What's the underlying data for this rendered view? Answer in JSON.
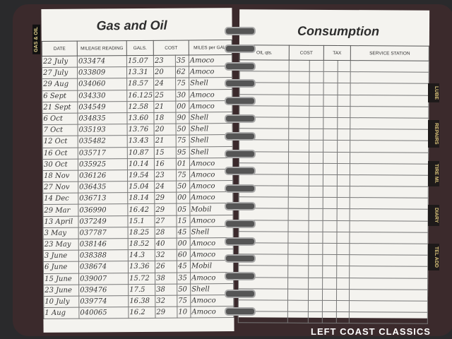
{
  "left_page": {
    "title": "Gas and Oil",
    "tab": "GAS & OIL",
    "headers": [
      "DATE",
      "MILEAGE READING",
      "GALS.",
      "COST",
      "MILES per GAL."
    ],
    "rows": [
      [
        "22 July",
        "033474",
        "15.07",
        "23",
        "35",
        "Amoco"
      ],
      [
        "27 July",
        "033809",
        "13.31",
        "20",
        "62",
        "Amoco"
      ],
      [
        "29 Aug",
        "034060",
        "18.57",
        "24",
        "75",
        "Shell"
      ],
      [
        "6 Sept",
        "034330",
        "16.125",
        "25",
        "30",
        "Amoco"
      ],
      [
        "21 Sept",
        "034549",
        "12.58",
        "21",
        "00",
        "Amoco"
      ],
      [
        "6 Oct",
        "034835",
        "13.60",
        "18",
        "90",
        "Shell"
      ],
      [
        "7 Oct",
        "035193",
        "13.76",
        "20",
        "50",
        "Shell"
      ],
      [
        "12 Oct",
        "035482",
        "13.43",
        "21",
        "75",
        "Shell"
      ],
      [
        "16 Oct",
        "035717",
        "10.87",
        "15",
        "95",
        "Shell"
      ],
      [
        "30 Oct",
        "035925",
        "10.14",
        "16",
        "01",
        "Amoco"
      ],
      [
        "18 Nov",
        "036126",
        "19.54",
        "23",
        "75",
        "Amoco"
      ],
      [
        "27 Nov",
        "036435",
        "15.04",
        "24",
        "50",
        "Amoco"
      ],
      [
        "14 Dec",
        "036713",
        "18.14",
        "29",
        "00",
        "Amoco"
      ],
      [
        "29 Mar",
        "036990",
        "16.42",
        "29",
        "05",
        "Mobil"
      ],
      [
        "13 April",
        "037249",
        "15.1",
        "27",
        "15",
        "Amoco"
      ],
      [
        "3 May",
        "037787",
        "18.25",
        "28",
        "45",
        "Shell"
      ],
      [
        "23 May",
        "038146",
        "18.52",
        "40",
        "00",
        "Amoco"
      ],
      [
        "3 June",
        "038388",
        "14.3",
        "32",
        "60",
        "Amoco"
      ],
      [
        "6 June",
        "038674",
        "13.36",
        "26",
        "45",
        "Mobil"
      ],
      [
        "15 June",
        "039007",
        "15.72",
        "38",
        "35",
        "Amoco"
      ],
      [
        "23 June",
        "039476",
        "17.5",
        "38",
        "50",
        "Shell"
      ],
      [
        "10 July",
        "039774",
        "16.38",
        "32",
        "75",
        "Amoco"
      ],
      [
        "1 Aug",
        "040065",
        "16.2",
        "29",
        "10",
        "Amoco"
      ]
    ]
  },
  "right_page": {
    "title": "Consumption",
    "headers": [
      "OIL qts.",
      "COST",
      "TAX",
      "SERVICE STATION"
    ]
  },
  "tabs": [
    "LUBE",
    "REPAIRS",
    "TIRE MI.",
    "DIARY",
    "TEL ADD"
  ],
  "watermark": "LEFT COAST CLASSICS"
}
